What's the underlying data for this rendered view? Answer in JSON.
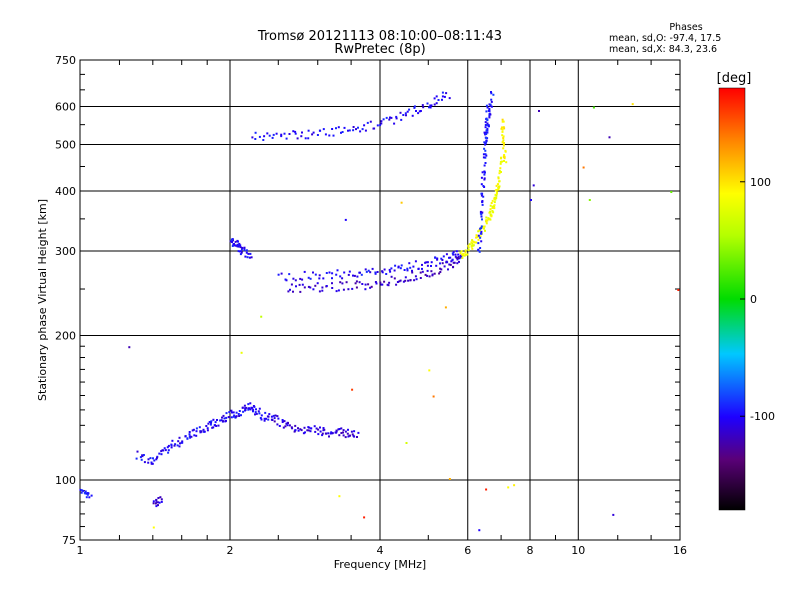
{
  "header": {
    "title": "Tromsø 20121113 08:10:00–08:11:43",
    "subtitle": "RwPretec (8p)"
  },
  "phases_box": {
    "heading": "Phases",
    "line_o": "mean, sd,O: -97.4, 17.5",
    "line_x": "mean, sd,X:  84.3, 23.6"
  },
  "colorbar": {
    "unit_label": "[deg]",
    "min": -180,
    "max": 180,
    "tick_values": [
      100,
      0,
      -100
    ],
    "tick_labels": [
      "100",
      "0",
      "-100"
    ]
  },
  "chart_data": {
    "type": "scatter",
    "xlabel": "Frequency [MHz]",
    "ylabel": "Stationary phase Virtual Height [km]",
    "x_scale": "log",
    "y_scale": "log",
    "xlim": [
      1,
      16
    ],
    "ylim": [
      75,
      750
    ],
    "x_ticks": [
      1,
      2,
      4,
      6,
      8,
      10,
      16
    ],
    "x_tick_labels": [
      "1",
      "2",
      "4",
      "6",
      "8",
      "10",
      "16"
    ],
    "y_ticks": [
      75,
      100,
      200,
      300,
      400,
      500,
      600,
      750
    ],
    "y_tick_labels": [
      "75",
      "100",
      "200",
      "300",
      "400",
      "500",
      "600",
      "750"
    ],
    "grid": true,
    "traces": [
      {
        "x": [
          1.3,
          1.4,
          1.5,
          1.6,
          1.7,
          1.8,
          1.9,
          2.0,
          2.1,
          2.2,
          2.3,
          2.45
        ],
        "y": [
          113,
          110,
          117,
          122,
          126,
          130,
          133,
          137,
          140,
          143,
          137,
          134
        ],
        "phase": -100
      },
      {
        "x": [
          2.45,
          2.6,
          2.8,
          3.0,
          3.2,
          3.4,
          3.6
        ],
        "y": [
          135,
          130,
          128,
          127,
          126,
          126,
          125
        ],
        "phase": -110
      },
      {
        "x": [
          2.5,
          3.0,
          3.5,
          4.0,
          4.5,
          5.0,
          5.5,
          5.8
        ],
        "y": [
          265,
          268,
          270,
          272,
          278,
          285,
          292,
          298
        ],
        "phase": -100
      },
      {
        "x": [
          2.6,
          3.0,
          3.5,
          4.0,
          4.5,
          5.0,
          5.5,
          5.8
        ],
        "y": [
          253,
          253,
          255,
          258,
          265,
          272,
          282,
          290
        ],
        "phase": -115
      },
      {
        "x": [
          2.0,
          2.05,
          2.1,
          2.2
        ],
        "y": [
          315,
          310,
          302,
          296
        ],
        "phase": -100
      },
      {
        "x": [
          5.8,
          6.0,
          6.2,
          6.4,
          6.6,
          6.7,
          6.8,
          6.9,
          7.0
        ],
        "y": [
          295,
          305,
          320,
          335,
          355,
          370,
          390,
          420,
          480
        ],
        "phase": 85
      },
      {
        "x": [
          6.3,
          6.35,
          6.4,
          6.45,
          6.5,
          6.55
        ],
        "y": [
          300,
          350,
          400,
          470,
          530,
          600
        ],
        "phase": -95
      },
      {
        "x": [
          6.5,
          6.6,
          6.7
        ],
        "y": [
          520,
          580,
          640
        ],
        "phase": -95
      },
      {
        "x": [
          2.2,
          2.6,
          3.0,
          3.5,
          4.0,
          4.5,
          5.0,
          5.5
        ],
        "y": [
          520,
          525,
          530,
          540,
          555,
          580,
          610,
          640
        ],
        "phase": -100
      },
      {
        "x": [
          1.0,
          1.05
        ],
        "y": [
          95,
          93
        ],
        "phase": -95
      },
      {
        "x": [
          1.4,
          1.45
        ],
        "y": [
          90,
          91
        ],
        "phase": -110
      },
      {
        "x": [
          7.0,
          7.05,
          7.1
        ],
        "y": [
          560,
          510,
          460
        ],
        "phase": 95
      }
    ],
    "points": [
      {
        "x": 1.25,
        "y": 190,
        "phase": -120
      },
      {
        "x": 2.1,
        "y": 185,
        "phase": 80
      },
      {
        "x": 1.4,
        "y": 80,
        "phase": 90
      },
      {
        "x": 2.3,
        "y": 220,
        "phase": 60
      },
      {
        "x": 3.3,
        "y": 93,
        "phase": 90
      },
      {
        "x": 3.5,
        "y": 155,
        "phase": 160
      },
      {
        "x": 3.7,
        "y": 84,
        "phase": 170
      },
      {
        "x": 4.5,
        "y": 120,
        "phase": 70
      },
      {
        "x": 5.1,
        "y": 150,
        "phase": 140
      },
      {
        "x": 5.5,
        "y": 101,
        "phase": 120
      },
      {
        "x": 6.3,
        "y": 79,
        "phase": -100
      },
      {
        "x": 6.5,
        "y": 96,
        "phase": 170
      },
      {
        "x": 7.2,
        "y": 97,
        "phase": 90
      },
      {
        "x": 7.4,
        "y": 98,
        "phase": 95
      },
      {
        "x": 11.7,
        "y": 85,
        "phase": -110
      },
      {
        "x": 11.5,
        "y": 520,
        "phase": -120
      },
      {
        "x": 10.2,
        "y": 450,
        "phase": 140
      },
      {
        "x": 10.7,
        "y": 600,
        "phase": 20
      },
      {
        "x": 12.8,
        "y": 610,
        "phase": 100
      },
      {
        "x": 15.3,
        "y": 400,
        "phase": 30
      },
      {
        "x": 15.8,
        "y": 250,
        "phase": 170
      },
      {
        "x": 10.5,
        "y": 385,
        "phase": 40
      },
      {
        "x": 8.3,
        "y": 590,
        "phase": -120
      },
      {
        "x": 8.1,
        "y": 413,
        "phase": -110
      },
      {
        "x": 8.0,
        "y": 385,
        "phase": -100
      },
      {
        "x": 5.4,
        "y": 230,
        "phase": 120
      },
      {
        "x": 5.0,
        "y": 170,
        "phase": 90
      },
      {
        "x": 3.4,
        "y": 350,
        "phase": -100
      },
      {
        "x": 4.4,
        "y": 380,
        "phase": 110
      }
    ]
  }
}
